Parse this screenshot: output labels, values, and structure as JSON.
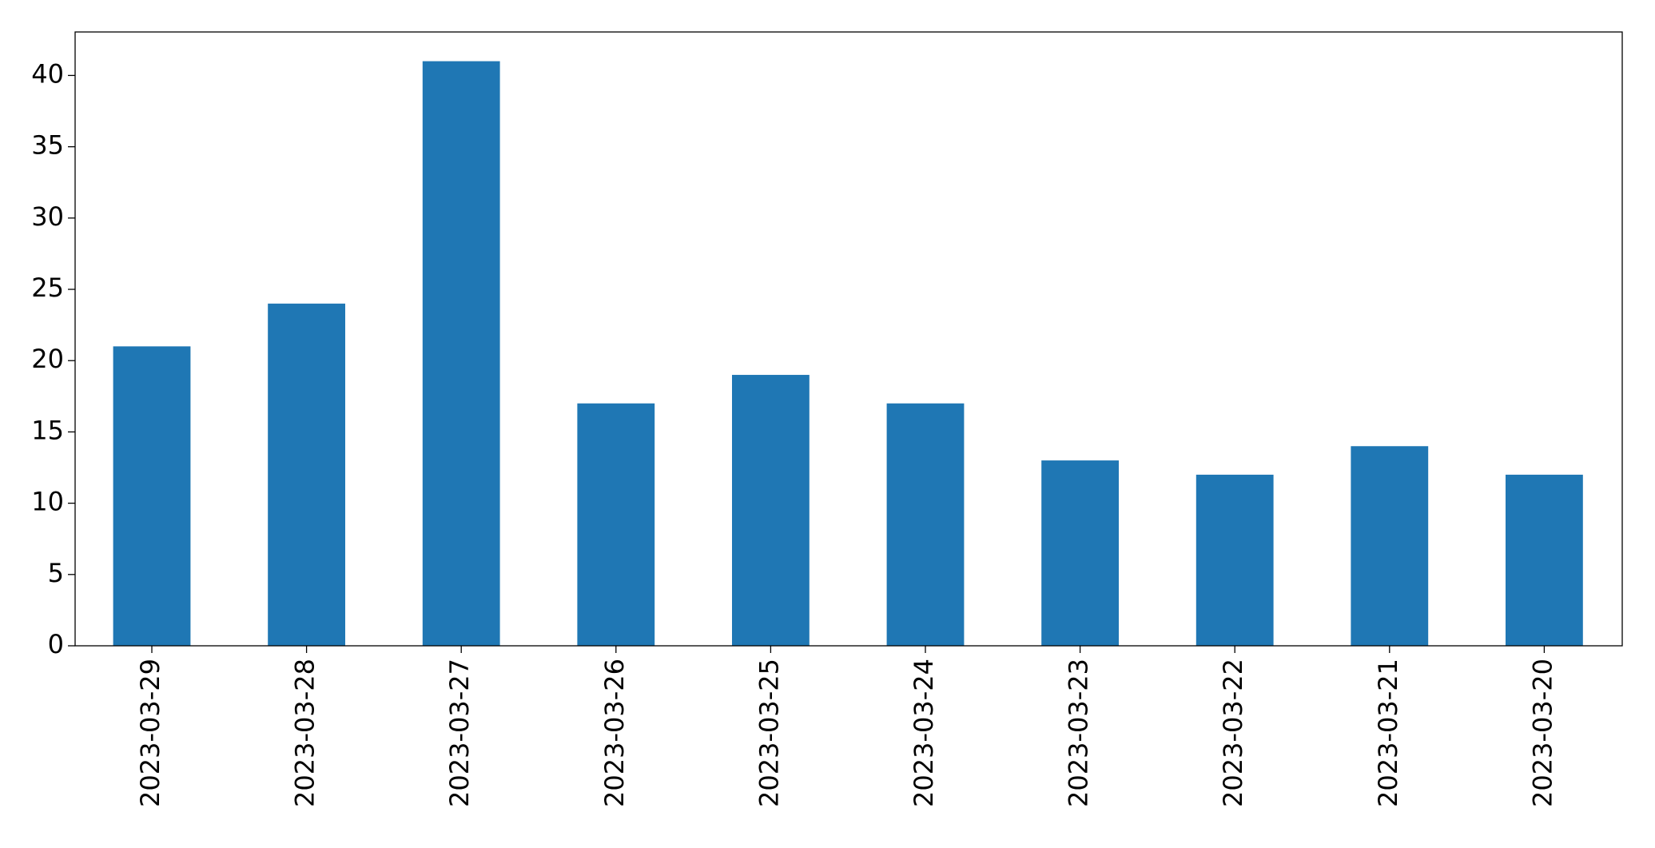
{
  "chart_data": {
    "type": "bar",
    "categories": [
      "2023-03-29",
      "2023-03-28",
      "2023-03-27",
      "2023-03-26",
      "2023-03-25",
      "2023-03-24",
      "2023-03-23",
      "2023-03-22",
      "2023-03-21",
      "2023-03-20"
    ],
    "values": [
      21,
      24,
      41,
      17,
      19,
      17,
      13,
      12,
      14,
      12
    ],
    "color": "#1f77b4",
    "ylim": [
      0,
      43.05
    ],
    "yticks": [
      0,
      5,
      10,
      15,
      20,
      25,
      30,
      35,
      40
    ],
    "grid": false
  }
}
